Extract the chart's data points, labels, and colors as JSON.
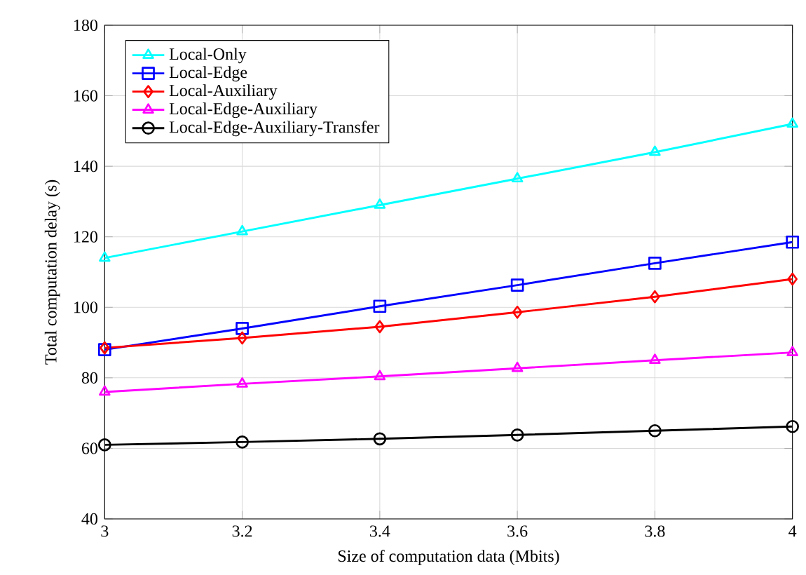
{
  "chart_data": {
    "type": "line",
    "xlabel": "Size of computation data (Mbits)",
    "ylabel": "Total computation delay (s)",
    "x": [
      3,
      3.2,
      3.4,
      3.6,
      3.8,
      4
    ],
    "xlim": [
      3,
      4
    ],
    "xticks": [
      3,
      3.2,
      3.4,
      3.6,
      3.8,
      4
    ],
    "ylim": [
      40,
      180
    ],
    "yticks": [
      40,
      60,
      80,
      100,
      120,
      140,
      160,
      180
    ],
    "grid": true,
    "legend": "top left",
    "series": [
      {
        "name": "Local-Only",
        "color": "#00ffff",
        "marker": "triangle",
        "values": [
          114,
          121.5,
          129,
          136.5,
          144,
          152
        ]
      },
      {
        "name": "Local-Edge",
        "color": "#0000ff",
        "marker": "square",
        "values": [
          88,
          94,
          100.3,
          106.3,
          112.5,
          118.5
        ]
      },
      {
        "name": "Local-Auxiliary",
        "color": "#ff0000",
        "marker": "diamond",
        "values": [
          88.5,
          91.3,
          94.5,
          98.6,
          103,
          108
        ]
      },
      {
        "name": "Local-Edge-Auxiliary",
        "color": "#ff00ff",
        "marker": "triangle",
        "values": [
          76,
          78.3,
          80.4,
          82.7,
          85,
          87.2
        ]
      },
      {
        "name": "Local-Edge-Auxiliary-Transfer",
        "color": "#000000",
        "marker": "circle",
        "values": [
          61,
          61.8,
          62.7,
          63.8,
          65,
          66.2
        ]
      }
    ]
  }
}
